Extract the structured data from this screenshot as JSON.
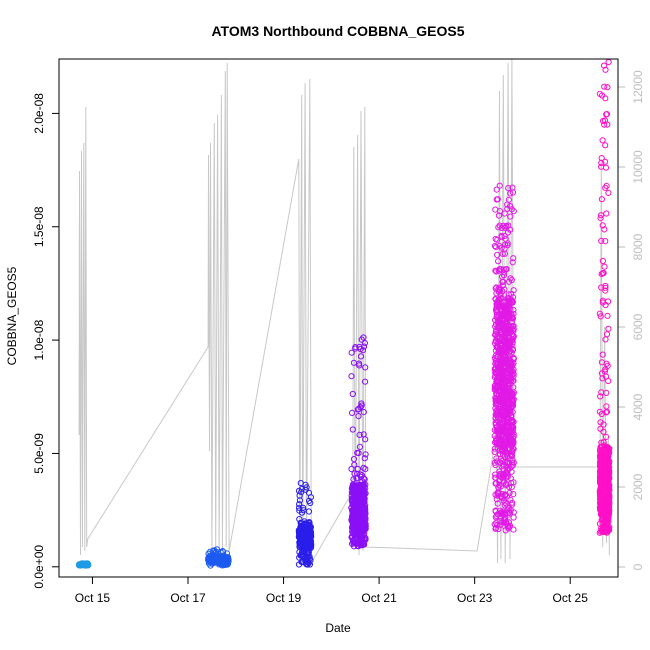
{
  "chart_data": {
    "type": "scatter",
    "title": "ATOM3 Northbound COBBNA_GEOS5",
    "xlabel": "Date",
    "ylabel": "COBBNA_GEOS5",
    "x_tick_labels": [
      "Oct 15",
      "Oct 17",
      "Oct 19",
      "Oct 21",
      "Oct 23",
      "Oct 25"
    ],
    "x_tick_days": [
      15,
      17,
      19,
      21,
      23,
      25
    ],
    "xlim_days": [
      14.3,
      26.0
    ],
    "y_tick_labels": [
      "0.0e+00",
      "5.0e-09",
      "1.0e-08",
      "1.5e-08",
      "2.0e-08"
    ],
    "y_tick_values": [
      0,
      5e-09,
      1e-08,
      1.5e-08,
      2e-08
    ],
    "ylim": [
      -4.5e-10,
      2.24e-08
    ],
    "right_axis": {
      "color": "#bebebe",
      "tick_labels": [
        "0",
        "2000",
        "4000",
        "6000",
        "8000",
        "10000",
        "12000"
      ],
      "tick_values": [
        0,
        2000,
        4000,
        6000,
        8000,
        10000,
        12000
      ],
      "ylim": [
        -250,
        12700
      ]
    },
    "grid": false,
    "series": [
      {
        "color": "#1E9BE6",
        "clusters": [
          {
            "day_start": 14.72,
            "day_end": 14.92,
            "y_min": 5e-11,
            "y_max": 1.5e-10,
            "y_typ": 1e-10,
            "n": 60
          }
        ]
      },
      {
        "color": "#1C5AF0",
        "clusters": [
          {
            "day_start": 17.42,
            "day_end": 17.85,
            "y_min": 5e-11,
            "y_max": 8e-10,
            "y_typ": 3.5e-10,
            "n": 140
          }
        ]
      },
      {
        "color": "#2A1EEA",
        "clusters": [
          {
            "day_start": 19.32,
            "day_end": 19.58,
            "y_min": 1e-10,
            "y_max": 3.7e-09,
            "y_typ": 1.4e-09,
            "n": 260
          }
        ]
      },
      {
        "color": "#8A10F5",
        "clusters": [
          {
            "day_start": 20.42,
            "day_end": 20.72,
            "y_min": 9e-10,
            "y_max": 1.02e-08,
            "y_typ": 2.6e-09,
            "n": 520
          }
        ]
      },
      {
        "color": "#E21AE6",
        "clusters": [
          {
            "day_start": 23.42,
            "day_end": 23.82,
            "y_min": 1.6e-09,
            "y_max": 1.7e-08,
            "y_typ": 8.5e-09,
            "n": 950
          }
        ]
      },
      {
        "color": "#FF10C8",
        "clusters": [
          {
            "day_start": 25.62,
            "day_end": 25.82,
            "y_min": 1.5e-09,
            "y_max": 2.23e-08,
            "y_typ": 3.8e-09,
            "n": 700
          }
        ]
      }
    ],
    "right_series_line": {
      "color": "#c8c8c8",
      "points": [
        [
          14.72,
          3300
        ],
        [
          14.73,
          9900
        ],
        [
          14.75,
          300
        ],
        [
          14.77,
          10400
        ],
        [
          14.79,
          500
        ],
        [
          14.82,
          10600
        ],
        [
          14.84,
          400
        ],
        [
          14.86,
          11500
        ],
        [
          14.88,
          500
        ],
        [
          14.9,
          700
        ],
        [
          17.42,
          5500
        ],
        [
          17.43,
          10300
        ],
        [
          17.45,
          2900
        ],
        [
          17.47,
          10600
        ],
        [
          17.5,
          400
        ],
        [
          17.55,
          11100
        ],
        [
          17.58,
          400
        ],
        [
          17.62,
          11300
        ],
        [
          17.65,
          300
        ],
        [
          17.7,
          11800
        ],
        [
          17.72,
          400
        ],
        [
          17.78,
          12400
        ],
        [
          17.8,
          500
        ],
        [
          17.82,
          12600
        ],
        [
          17.86,
          400
        ],
        [
          19.32,
          10200
        ],
        [
          19.34,
          200
        ],
        [
          19.38,
          11800
        ],
        [
          19.4,
          100
        ],
        [
          19.45,
          12100
        ],
        [
          19.48,
          300
        ],
        [
          19.55,
          12200
        ],
        [
          19.58,
          100
        ],
        [
          20.45,
          1900
        ],
        [
          20.47,
          10500
        ],
        [
          20.5,
          500
        ],
        [
          20.55,
          10800
        ],
        [
          20.58,
          300
        ],
        [
          20.62,
          11400
        ],
        [
          20.66,
          400
        ],
        [
          20.7,
          11500
        ],
        [
          20.72,
          500
        ],
        [
          23.05,
          400
        ],
        [
          23.45,
          3300
        ],
        [
          23.48,
          100
        ],
        [
          23.52,
          11900
        ],
        [
          23.55,
          200
        ],
        [
          23.6,
          12300
        ],
        [
          23.64,
          100
        ],
        [
          23.7,
          12600
        ],
        [
          23.74,
          200
        ],
        [
          23.78,
          12700
        ],
        [
          23.82,
          2500
        ],
        [
          25.6,
          2500
        ],
        [
          25.62,
          1000
        ],
        [
          25.65,
          10200
        ],
        [
          25.68,
          500
        ],
        [
          25.72,
          6000
        ],
        [
          25.76,
          600
        ],
        [
          25.8,
          3200
        ],
        [
          25.82,
          300
        ]
      ]
    }
  }
}
